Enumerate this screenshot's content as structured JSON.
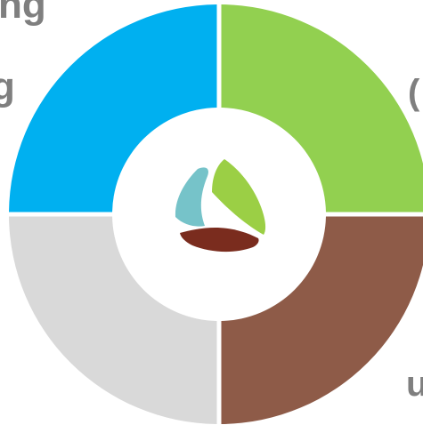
{
  "text_fragments": {
    "top_left": "ng",
    "left": "g",
    "right_upper": "(",
    "right_lower": "u"
  },
  "quadrants": [
    {
      "name": "top-left",
      "color": "#00b0f0"
    },
    {
      "name": "top-right",
      "color": "#92d050"
    },
    {
      "name": "bottom-right",
      "color": "#8e5b48"
    },
    {
      "name": "bottom-left",
      "color": "#d9d9d9"
    }
  ],
  "logo": {
    "icon": "three-leaf-swirl-logo",
    "colors": [
      "#9bcf45",
      "#7a2c1e",
      "#76c3c9"
    ]
  }
}
